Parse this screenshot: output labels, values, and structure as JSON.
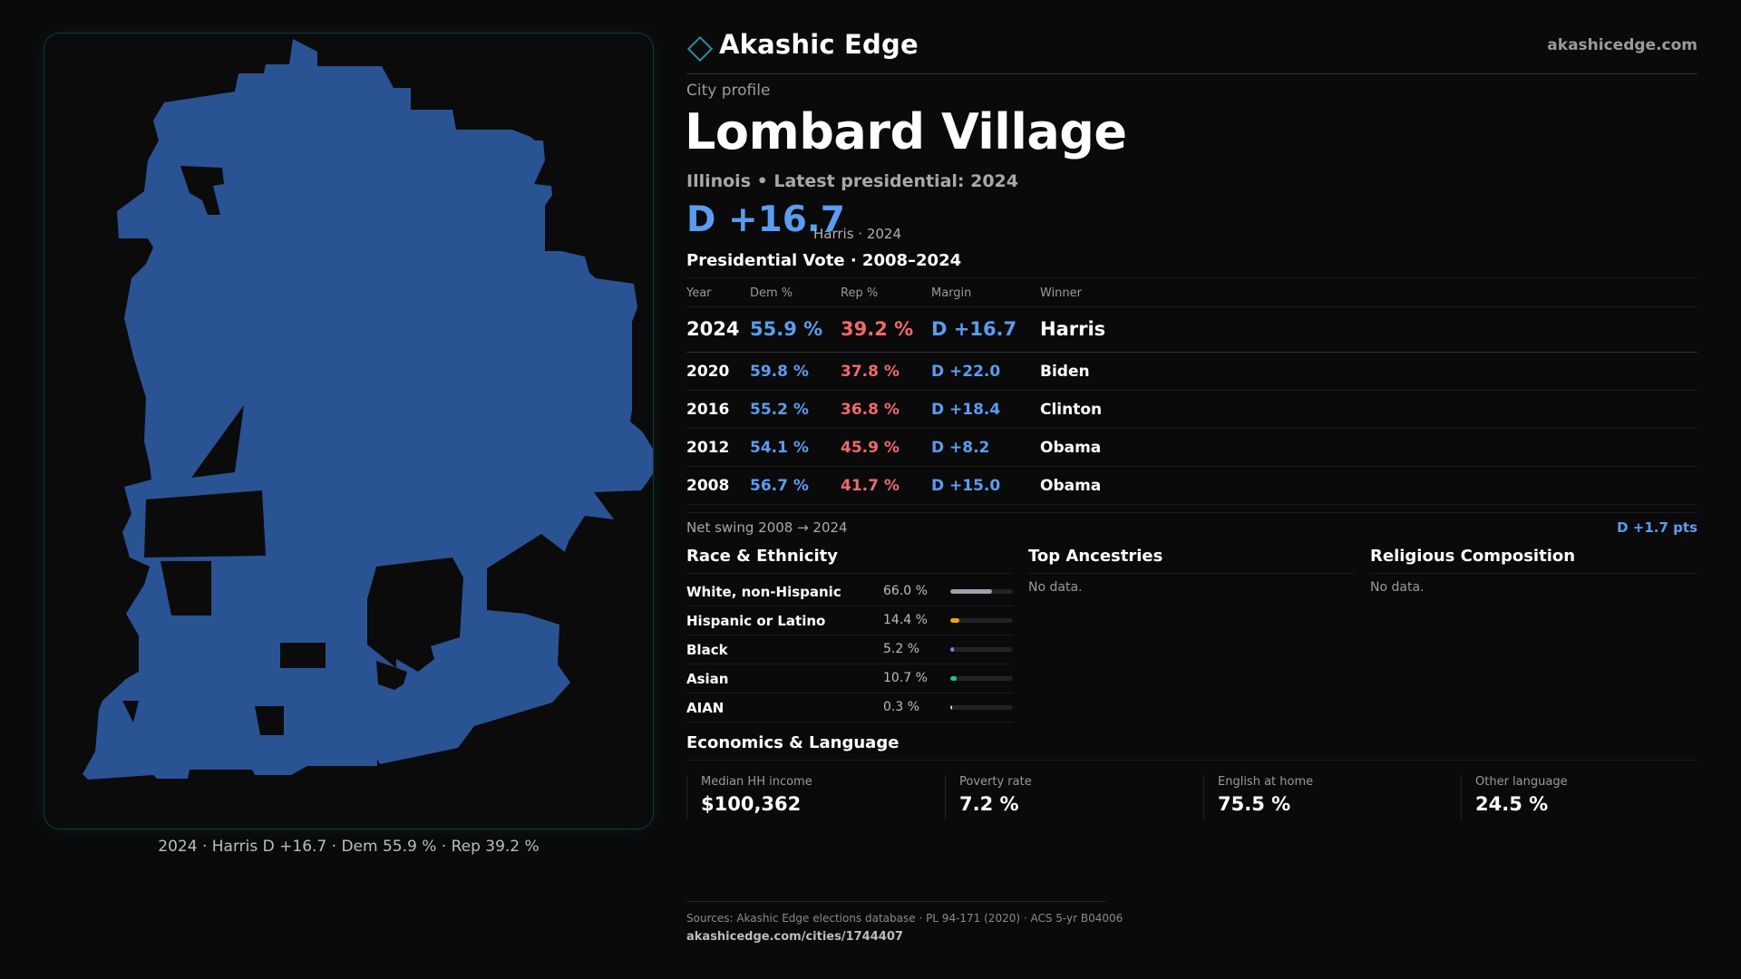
{
  "brand": {
    "name": "Akashic Edge",
    "url": "akashicedge.com"
  },
  "profile": {
    "eyebrow": "City profile",
    "title": "Lombard Village",
    "subtitle": "Illinois • Latest presidential: 2024",
    "margin": "D +16.7",
    "margin_note": "Harris · 2024"
  },
  "map": {
    "fill_color": "#2a5394",
    "caption": "2024 · Harris D +16.7 · Dem 55.9 % · Rep 39.2 %"
  },
  "vote": {
    "title": "Presidential Vote · 2008–2024",
    "headers": {
      "year": "Year",
      "dem": "Dem %",
      "rep": "Rep %",
      "margin": "Margin",
      "winner": "Winner"
    },
    "rows": [
      {
        "year": "2024",
        "dem": "55.9 %",
        "rep": "39.2 %",
        "margin": "D +16.7",
        "winner": "Harris"
      },
      {
        "year": "2020",
        "dem": "59.8 %",
        "rep": "37.8 %",
        "margin": "D +22.0",
        "winner": "Biden"
      },
      {
        "year": "2016",
        "dem": "55.2 %",
        "rep": "36.8 %",
        "margin": "D +18.4",
        "winner": "Clinton"
      },
      {
        "year": "2012",
        "dem": "54.1 %",
        "rep": "45.9 %",
        "margin": "D +8.2",
        "winner": "Obama"
      },
      {
        "year": "2008",
        "dem": "56.7 %",
        "rep": "41.7 %",
        "margin": "D +15.0",
        "winner": "Obama"
      }
    ],
    "swing_label": "Net swing 2008 → 2024",
    "swing_value": "D +1.7 pts"
  },
  "race": {
    "title": "Race & Ethnicity",
    "rows": [
      {
        "label": "White, non-Hispanic",
        "pct": "66.0 %",
        "share": 66.0,
        "color": "#9aa3ad"
      },
      {
        "label": "Hispanic or Latino",
        "pct": "14.4 %",
        "share": 14.4,
        "color": "#e8a317"
      },
      {
        "label": "Black",
        "pct": "5.2 %",
        "share": 5.2,
        "color": "#8b7de0"
      },
      {
        "label": "Asian",
        "pct": "10.7 %",
        "share": 10.7,
        "color": "#26c48a"
      },
      {
        "label": "AIAN",
        "pct": "0.3 %",
        "share": 0.3,
        "color": "#d0d0d0"
      }
    ]
  },
  "ancestries": {
    "title": "Top Ancestries",
    "empty": "No data."
  },
  "religion": {
    "title": "Religious Composition",
    "empty": "No data."
  },
  "economics": {
    "title": "Economics & Language",
    "items": [
      {
        "label": "Median HH income",
        "value": "$100,362"
      },
      {
        "label": "Poverty rate",
        "value": "7.2 %"
      },
      {
        "label": "English at home",
        "value": "75.5 %"
      },
      {
        "label": "Other language",
        "value": "24.5 %"
      }
    ]
  },
  "footer": {
    "sources": "Sources: Akashic Edge elections database · PL 94-171 (2020) · ACS 5-yr B04006",
    "url": "akashicedge.com/cities/1744407"
  }
}
